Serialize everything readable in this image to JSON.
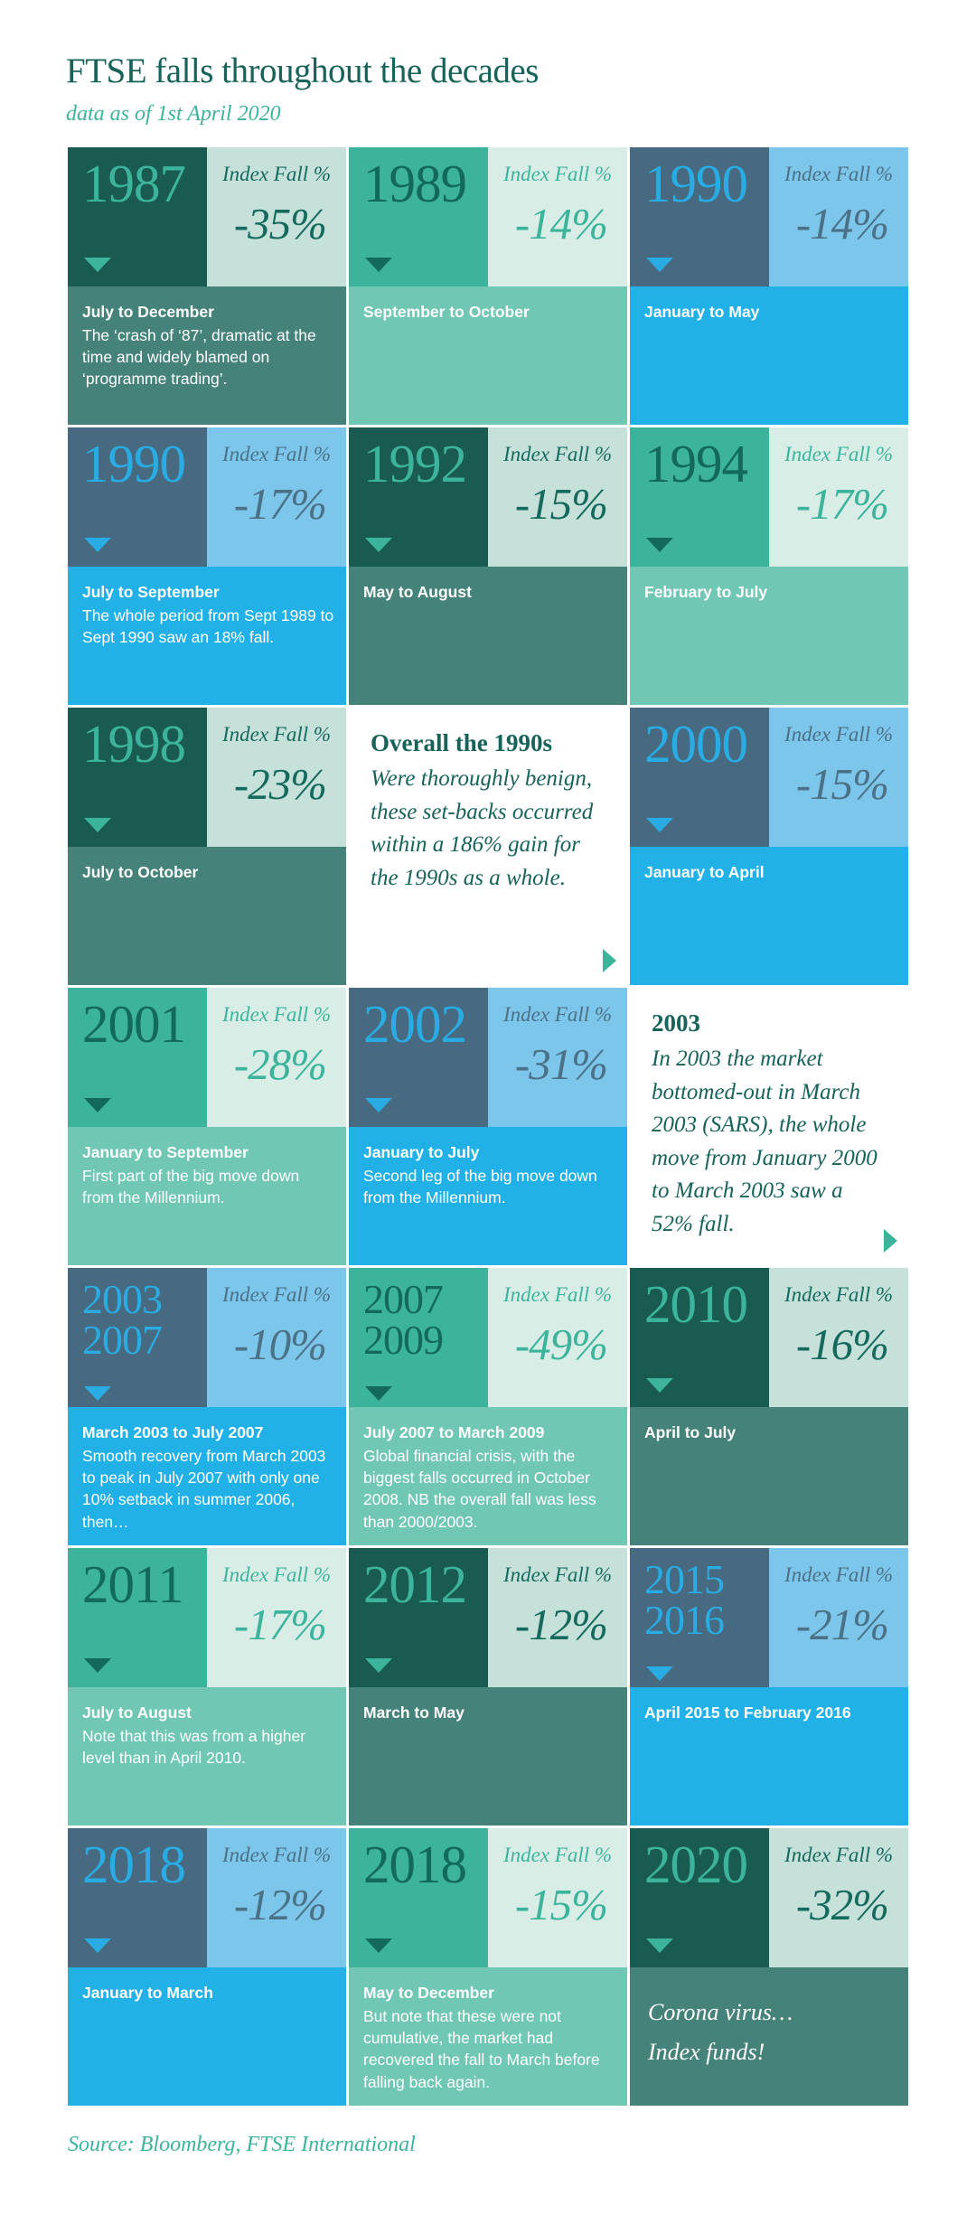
{
  "page": {
    "title": "FTSE falls throughout the decades",
    "subtitle": "data as of 1st April 2020",
    "source": "Source: Bloomberg, FTSE International",
    "index_fall_label": "Index Fall %"
  },
  "colors": {
    "title_teal": "#17635A",
    "accent_teal_green": "#3CB49B",
    "dark_teal": "#1A5B51",
    "medium_teal": "#45837A",
    "seafoam": "#6FC7B4",
    "mint": "#C6E0DA",
    "light_mint": "#D9EDE7",
    "steel_blue": "#476A80",
    "bright_blue": "#22B1E7",
    "light_blue": "#7CC5EB",
    "steel_text": "#4B7187",
    "white": "#FFFFFF"
  },
  "chart_data": {
    "type": "table",
    "title": "FTSE falls throughout the decades",
    "subtitle": "data as of 1st April 2020",
    "source": "Source: Bloomberg, FTSE International",
    "columns": 3,
    "value_label": "Index Fall %",
    "cells": [
      {
        "kind": "tile",
        "variant": "dark",
        "years": [
          "1987"
        ],
        "fall_pct": -35,
        "fall_label": "-35%",
        "period": "July to December",
        "detail": "The ‘crash of ‘87’, dramatic at the time and widely blamed on ‘programme trading’."
      },
      {
        "kind": "tile",
        "variant": "teal",
        "years": [
          "1989"
        ],
        "fall_pct": -14,
        "fall_label": "-14%",
        "period": "September to October",
        "detail": ""
      },
      {
        "kind": "tile",
        "variant": "blue",
        "years": [
          "1990"
        ],
        "fall_pct": -14,
        "fall_label": "-14%",
        "period": "January to May",
        "detail": ""
      },
      {
        "kind": "tile",
        "variant": "blue",
        "years": [
          "1990"
        ],
        "fall_pct": -17,
        "fall_label": "-17%",
        "period": "July to September",
        "detail": "The whole period from Sept 1989 to Sept 1990 saw an 18% fall."
      },
      {
        "kind": "tile",
        "variant": "dark",
        "years": [
          "1992"
        ],
        "fall_pct": -15,
        "fall_label": "-15%",
        "period": "May to August",
        "detail": ""
      },
      {
        "kind": "tile",
        "variant": "teal",
        "years": [
          "1994"
        ],
        "fall_pct": -17,
        "fall_label": "-17%",
        "period": "February to July",
        "detail": ""
      },
      {
        "kind": "tile",
        "variant": "dark",
        "years": [
          "1998"
        ],
        "fall_pct": -23,
        "fall_label": "-23%",
        "period": "July to October",
        "detail": ""
      },
      {
        "kind": "note",
        "heading": "Overall the 1990s",
        "body": "Were thoroughly benign, these set-backs occurred within a 186% gain for the 1990s as a whole."
      },
      {
        "kind": "tile",
        "variant": "blue",
        "years": [
          "2000"
        ],
        "fall_pct": -15,
        "fall_label": "-15%",
        "period": "January to April",
        "detail": ""
      },
      {
        "kind": "tile",
        "variant": "teal",
        "years": [
          "2001"
        ],
        "fall_pct": -28,
        "fall_label": "-28%",
        "period": "January to September",
        "detail": "First part of the big move down from the Millennium."
      },
      {
        "kind": "tile",
        "variant": "blue",
        "years": [
          "2002"
        ],
        "fall_pct": -31,
        "fall_label": "-31%",
        "period": "January to July",
        "detail": "Second leg of the big move down from the Millennium."
      },
      {
        "kind": "note",
        "heading": "2003",
        "body": "In 2003 the market bottomed-out in March 2003 (SARS), the whole move from January 2000 to March 2003 saw a 52% fall."
      },
      {
        "kind": "tile",
        "variant": "blue",
        "years": [
          "2003",
          "2007"
        ],
        "fall_pct": -10,
        "fall_label": "-10%",
        "period": "March 2003 to July 2007",
        "detail": "Smooth recovery from March 2003 to peak in July 2007 with only one 10% setback in summer 2006, then…"
      },
      {
        "kind": "tile",
        "variant": "teal",
        "years": [
          "2007",
          "2009"
        ],
        "fall_pct": -49,
        "fall_label": "-49%",
        "period": "July 2007 to March 2009",
        "detail": "Global financial crisis, with the biggest falls occurred in October 2008. NB the overall fall was less than 2000/2003."
      },
      {
        "kind": "tile",
        "variant": "dark",
        "years": [
          "2010"
        ],
        "fall_pct": -16,
        "fall_label": "-16%",
        "period": "April to July",
        "detail": ""
      },
      {
        "kind": "tile",
        "variant": "teal",
        "years": [
          "2011"
        ],
        "fall_pct": -17,
        "fall_label": "-17%",
        "period": "July to August",
        "detail": "Note that this was from a higher level than in April 2010."
      },
      {
        "kind": "tile",
        "variant": "dark",
        "years": [
          "2012"
        ],
        "fall_pct": -12,
        "fall_label": "-12%",
        "period": "March to May",
        "detail": ""
      },
      {
        "kind": "tile",
        "variant": "blue",
        "years": [
          "2015",
          "2016"
        ],
        "fall_pct": -21,
        "fall_label": "-21%",
        "period": "April 2015 to February 2016",
        "detail": ""
      },
      {
        "kind": "tile",
        "variant": "blue",
        "years": [
          "2018"
        ],
        "fall_pct": -12,
        "fall_label": "-12%",
        "period": "January to March",
        "detail": ""
      },
      {
        "kind": "tile",
        "variant": "teal",
        "years": [
          "2018"
        ],
        "fall_pct": -15,
        "fall_label": "-15%",
        "period": "May to December",
        "detail": "But note that these were not cumulative, the market had recovered the fall to March before falling back again."
      },
      {
        "kind": "tile",
        "variant": "dark",
        "years": [
          "2020"
        ],
        "fall_pct": -32,
        "fall_label": "-32%",
        "period": "",
        "detail": "",
        "italic_note": [
          "Corona virus…",
          "Index funds!"
        ]
      }
    ]
  }
}
